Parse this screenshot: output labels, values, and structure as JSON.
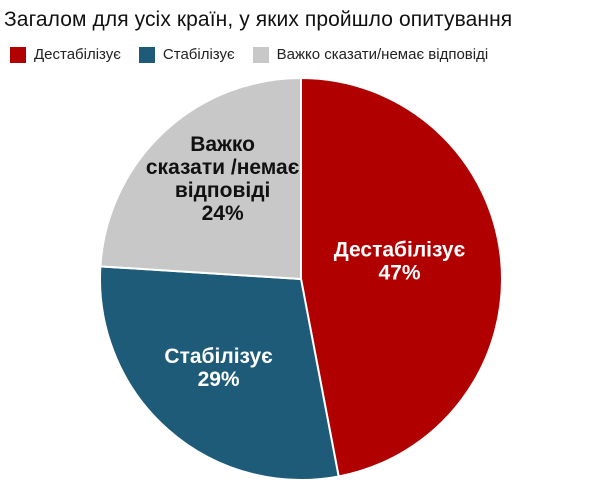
{
  "chart_data": {
    "type": "pie",
    "title": "Загалом для усіх країн, у яких пройшло опитування",
    "categories": [
      "Дестабілізує",
      "Стабілізує",
      "Важко сказати/немає відповіді"
    ],
    "values": [
      47,
      29,
      24
    ],
    "colors": [
      "#b00000",
      "#1e5b78",
      "#c8c8c8"
    ],
    "legend": {
      "placement": "top",
      "entries": [
        "Дестабілізує",
        "Стабілізує",
        "Важко сказати/немає відповіді"
      ]
    },
    "slice_labels": [
      {
        "lines": [
          "Дестабілізує",
          "47%"
        ],
        "color": "#ffffff"
      },
      {
        "lines": [
          "Стабілізує",
          "29%"
        ],
        "color": "#ffffff"
      },
      {
        "lines": [
          "Важко",
          "сказати /немає",
          "відповіді",
          "24%"
        ],
        "color": "#111111"
      }
    ]
  }
}
